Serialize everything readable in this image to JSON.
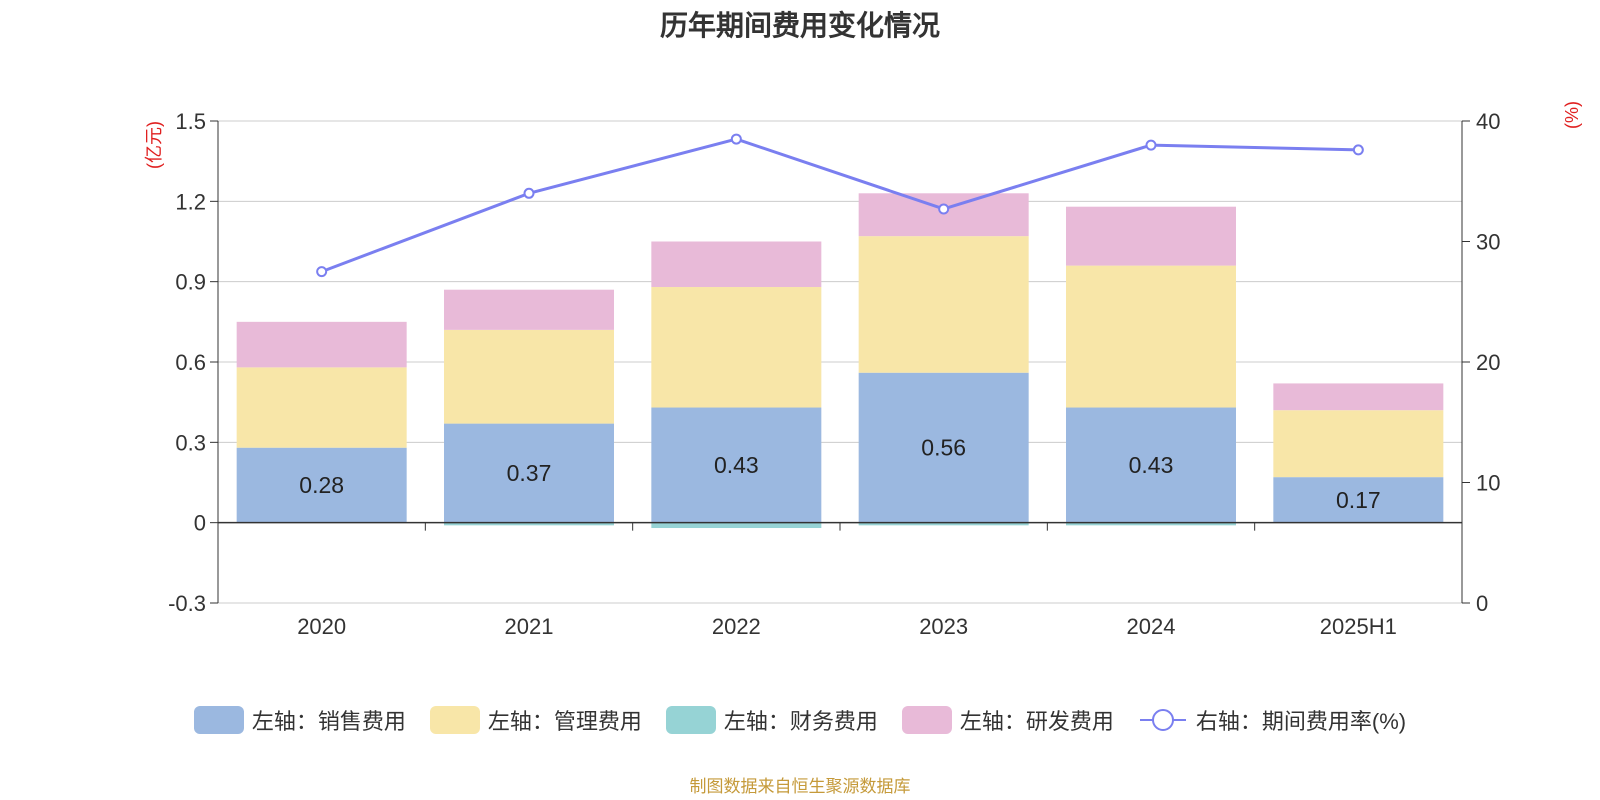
{
  "title": "历年期间费用变化情况",
  "source": "制图数据来自恒生聚源数据库",
  "chart_data": {
    "type": "bar",
    "categories": [
      "2020",
      "2021",
      "2022",
      "2023",
      "2024",
      "2025H1"
    ],
    "left_axis": {
      "unit": "(亿元)",
      "ylim": [
        -0.3,
        1.5
      ],
      "ticks": [
        -0.3,
        0,
        0.3,
        0.6,
        0.9,
        1.2,
        1.5
      ],
      "tick_labels": [
        "-0.3",
        "0",
        "0.3",
        "0.6",
        "0.9",
        "1.2",
        "1.5"
      ]
    },
    "right_axis": {
      "unit": "(%)",
      "ylim": [
        0,
        40
      ],
      "ticks": [
        0,
        10,
        20,
        30,
        40
      ],
      "tick_labels": [
        "0",
        "10",
        "20",
        "30",
        "40"
      ]
    },
    "series": [
      {
        "name": "左轴：销售费用",
        "color": "#9bb8e0",
        "values": [
          0.28,
          0.37,
          0.43,
          0.56,
          0.43,
          0.17
        ],
        "labels": [
          "0.28",
          "0.37",
          "0.43",
          "0.56",
          "0.43",
          "0.17"
        ]
      },
      {
        "name": "左轴：管理费用",
        "color": "#f8e6a8",
        "values": [
          0.3,
          0.35,
          0.45,
          0.51,
          0.53,
          0.25
        ]
      },
      {
        "name": "左轴：财务费用",
        "color": "#96d3d5",
        "values": [
          0.0,
          -0.01,
          -0.02,
          -0.01,
          -0.01,
          0.0
        ]
      },
      {
        "name": "左轴：研发费用",
        "color": "#e8bad8",
        "values": [
          0.17,
          0.15,
          0.17,
          0.16,
          0.22,
          0.1
        ]
      }
    ],
    "line": {
      "name": "右轴：期间费用率(%)",
      "color": "#7a7ff0",
      "values": [
        27.5,
        34.0,
        38.5,
        32.7,
        38.0,
        37.6
      ]
    },
    "grid": true,
    "legend_position": "bottom"
  }
}
